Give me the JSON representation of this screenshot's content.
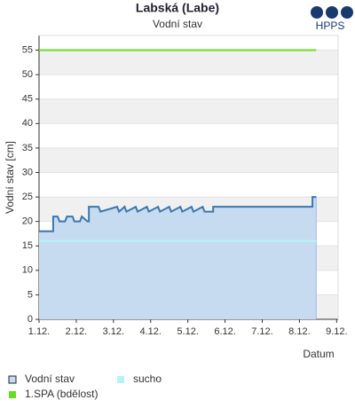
{
  "chart_data": {
    "type": "line",
    "title": "Labská (Labe)",
    "subtitle": "Vodní stav",
    "logo": "HPPS",
    "x_label": "Datum",
    "y_label": "Vodní stav [cm]",
    "xlim": [
      1,
      9.04
    ],
    "ylim": [
      0,
      58
    ],
    "xticks": [
      {
        "value": 1,
        "label": "1.12."
      },
      {
        "value": 2,
        "label": "2.12."
      },
      {
        "value": 3,
        "label": "3.12."
      },
      {
        "value": 4,
        "label": "4.12."
      },
      {
        "value": 5,
        "label": "5.12."
      },
      {
        "value": 6,
        "label": "6.12."
      },
      {
        "value": 7,
        "label": "7.12."
      },
      {
        "value": 8,
        "label": "8.12."
      },
      {
        "value": 9,
        "label": "9.12."
      }
    ],
    "yticks": [
      0,
      5,
      10,
      15,
      20,
      25,
      30,
      35,
      40,
      45,
      50,
      55
    ],
    "grid": true,
    "series": [
      {
        "name": "Vodní stav",
        "color": "#3a77b0",
        "fill": "#c6dbf0",
        "x": [
          1.0,
          1.38,
          1.38,
          1.5,
          1.55,
          1.7,
          1.75,
          1.9,
          1.95,
          2.1,
          2.15,
          2.3,
          2.34,
          2.34,
          2.6,
          2.65,
          3.1,
          3.15,
          3.3,
          3.35,
          3.6,
          3.65,
          3.9,
          3.95,
          4.2,
          4.25,
          4.5,
          4.55,
          4.8,
          4.85,
          5.1,
          5.15,
          5.4,
          5.45,
          5.68,
          5.68,
          8.35,
          8.35,
          8.45
        ],
        "values": [
          18,
          18,
          21,
          21,
          20,
          20,
          21,
          21,
          20,
          20,
          21,
          20,
          20,
          23,
          23,
          22,
          23,
          22,
          23,
          22,
          23,
          22,
          23,
          22,
          23,
          22,
          23,
          22,
          23,
          22,
          23,
          22,
          23,
          22,
          22,
          23,
          23,
          25,
          25
        ]
      },
      {
        "name": "sucho",
        "color": "#b3f5f5",
        "x": [
          1.0,
          8.45
        ],
        "values": [
          16,
          16
        ]
      },
      {
        "name": "1.SPA (bdělost)",
        "color": "#66dd22",
        "x": [
          1.0,
          8.45
        ],
        "values": [
          55,
          55
        ]
      }
    ]
  }
}
